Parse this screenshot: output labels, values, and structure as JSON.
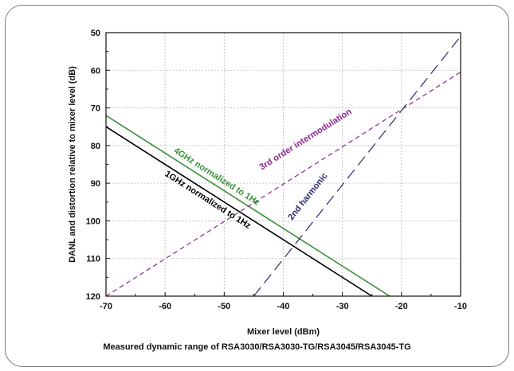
{
  "chart_data": {
    "type": "line",
    "xlabel": "Mixer level (dBm)",
    "ylabel": "DANL and distortion relative to mixer level (dB)",
    "caption": "Measured dynamic range of RSA3030/RSA3030-TG/RSA3045/RSA3045-TG",
    "xlim": [
      -70,
      -10
    ],
    "ylim": [
      50,
      120
    ],
    "y_inverted": true,
    "grid": true,
    "x_ticks": [
      -70,
      -60,
      -50,
      -40,
      -30,
      -20,
      -10
    ],
    "y_ticks": [
      50,
      60,
      70,
      80,
      90,
      100,
      110,
      120
    ],
    "series": [
      {
        "name": "4GHz normalized to 1Hz",
        "style": "solid",
        "color": "#3a8f3a",
        "x": [
          -70,
          -22
        ],
        "y": [
          72,
          120
        ]
      },
      {
        "name": "1GHz normalized to 1Hz",
        "style": "solid",
        "color": "#000000",
        "x": [
          -70,
          -25
        ],
        "y": [
          75,
          120
        ]
      },
      {
        "name": "3rd order intermodulation",
        "style": "dashed",
        "color": "#8b2a8b",
        "x": [
          -70,
          -10
        ],
        "y": [
          120,
          60.5
        ]
      },
      {
        "name": "2nd harmonic",
        "style": "dashed",
        "color": "#2b2b6e",
        "x": [
          -45,
          -10
        ],
        "y": [
          120,
          51
        ]
      }
    ]
  }
}
